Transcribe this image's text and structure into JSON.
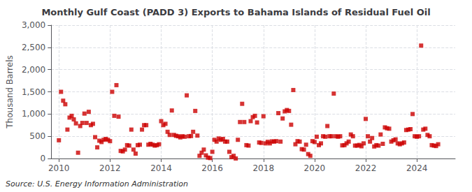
{
  "chart_data": {
    "type": "scatter",
    "title": "Monthly Gulf Coast (PADD 3) Exports to Bahama Islands of Residual Fuel Oil",
    "ylabel": "Thousand Barrels",
    "source": "Source: U.S. Energy Information Administration",
    "color": "#cc0000",
    "marker": "square",
    "grid": true,
    "xlim": [
      2009.7,
      2025.5
    ],
    "xticks": [
      2010,
      2012,
      2014,
      2016,
      2018,
      2020,
      2022,
      2024
    ],
    "ylim": [
      0,
      3000
    ],
    "yticks": [
      0,
      500,
      {
        "value": 1000,
        "label": "1,000"
      },
      {
        "value": 1500,
        "label": "1,500"
      },
      {
        "value": 2000,
        "label": "2,000"
      },
      {
        "value": 2500,
        "label": "2,500"
      },
      {
        "value": 3000,
        "label": "3,000"
      }
    ],
    "x": [
      2010.0,
      2010.083,
      2010.167,
      2010.25,
      2010.333,
      2010.417,
      2010.5,
      2010.583,
      2010.667,
      2010.75,
      2010.833,
      2010.917,
      2011.0,
      2011.083,
      2011.167,
      2011.25,
      2011.333,
      2011.417,
      2011.5,
      2011.583,
      2011.667,
      2011.75,
      2011.833,
      2011.917,
      2012.0,
      2012.083,
      2012.167,
      2012.25,
      2012.333,
      2012.417,
      2012.5,
      2012.583,
      2012.667,
      2012.75,
      2012.833,
      2012.917,
      2013.0,
      2013.083,
      2013.167,
      2013.25,
      2013.333,
      2013.417,
      2013.5,
      2013.583,
      2013.667,
      2013.75,
      2013.833,
      2013.917,
      2014.0,
      2014.083,
      2014.167,
      2014.25,
      2014.333,
      2014.417,
      2014.5,
      2014.583,
      2014.667,
      2014.75,
      2014.833,
      2014.917,
      2015.0,
      2015.083,
      2015.167,
      2015.25,
      2015.333,
      2015.417,
      2015.5,
      2015.583,
      2015.667,
      2015.75,
      2015.833,
      2015.917,
      2016.0,
      2016.083,
      2016.167,
      2016.25,
      2016.333,
      2016.417,
      2016.5,
      2016.583,
      2016.667,
      2016.75,
      2016.833,
      2016.917,
      2017.0,
      2017.083,
      2017.167,
      2017.25,
      2017.333,
      2017.417,
      2017.5,
      2017.583,
      2017.667,
      2017.75,
      2017.833,
      2017.917,
      2018.0,
      2018.083,
      2018.167,
      2018.25,
      2018.333,
      2018.417,
      2018.5,
      2018.583,
      2018.667,
      2018.75,
      2018.833,
      2018.917,
      2019.0,
      2019.083,
      2019.167,
      2019.25,
      2019.333,
      2019.417,
      2019.5,
      2019.583,
      2019.667,
      2019.75,
      2019.833,
      2019.917,
      2020.0,
      2020.083,
      2020.167,
      2020.25,
      2020.333,
      2020.417,
      2020.5,
      2020.583,
      2020.667,
      2020.75,
      2020.833,
      2020.917,
      2021.0,
      2021.083,
      2021.167,
      2021.25,
      2021.333,
      2021.417,
      2021.5,
      2021.583,
      2021.667,
      2021.75,
      2021.833,
      2021.917,
      2022.0,
      2022.083,
      2022.167,
      2022.25,
      2022.333,
      2022.417,
      2022.5,
      2022.583,
      2022.667,
      2022.75,
      2022.833,
      2022.917,
      2023.0,
      2023.083,
      2023.167,
      2023.25,
      2023.333,
      2023.417,
      2023.5,
      2023.583,
      2023.667,
      2023.75,
      2023.833,
      2023.917,
      2024.0,
      2024.083,
      2024.167,
      2024.25,
      2024.333,
      2024.417,
      2024.5,
      2024.583,
      2024.667,
      2024.75,
      2024.833
    ],
    "values": [
      410,
      1500,
      1300,
      1220,
      650,
      920,
      960,
      880,
      790,
      130,
      730,
      800,
      1010,
      800,
      1050,
      750,
      780,
      480,
      250,
      400,
      370,
      420,
      440,
      420,
      390,
      1500,
      960,
      1650,
      940,
      170,
      160,
      200,
      300,
      290,
      650,
      200,
      110,
      300,
      310,
      650,
      750,
      750,
      310,
      330,
      310,
      290,
      300,
      320,
      840,
      750,
      780,
      600,
      530,
      1080,
      530,
      510,
      500,
      475,
      500,
      490,
      1420,
      500,
      505,
      600,
      1070,
      515,
      60,
      130,
      200,
      70,
      20,
      10,
      150,
      420,
      380,
      450,
      420,
      440,
      380,
      380,
      150,
      30,
      60,
      0,
      420,
      820,
      1230,
      820,
      300,
      290,
      840,
      930,
      960,
      810,
      360,
      350,
      950,
      340,
      375,
      340,
      385,
      380,
      390,
      1020,
      380,
      900,
      1060,
      1090,
      1070,
      760,
      1540,
      320,
      390,
      380,
      210,
      200,
      310,
      100,
      60,
      390,
      370,
      490,
      300,
      340,
      500,
      490,
      730,
      500,
      500,
      1460,
      500,
      490,
      500,
      295,
      300,
      340,
      380,
      540,
      500,
      290,
      290,
      305,
      275,
      340,
      890,
      500,
      380,
      460,
      270,
      300,
      290,
      540,
      330,
      700,
      680,
      670,
      380,
      410,
      430,
      340,
      320,
      340,
      360,
      640,
      650,
      660,
      1000,
      500,
      490,
      500,
      2540,
      650,
      670,
      530,
      500,
      300,
      290,
      280,
      320
    ]
  }
}
